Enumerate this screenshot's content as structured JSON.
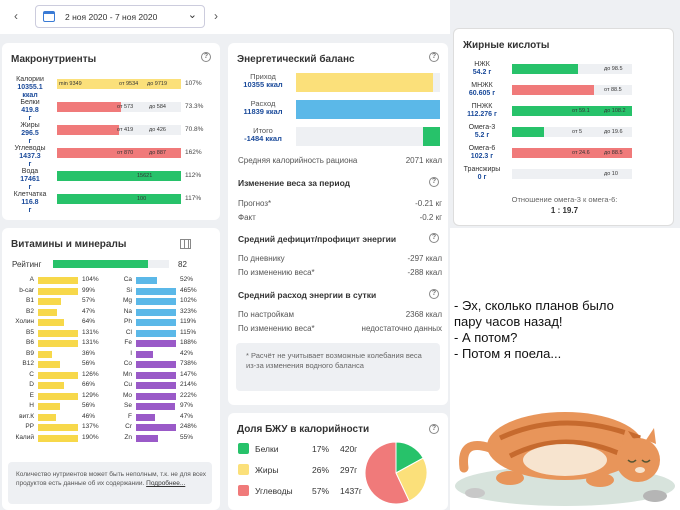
{
  "nav": {
    "prev": "‹",
    "next": "›",
    "date_range": "2 ноя 2020 - 7 ноя 2020",
    "dropdown": "⌄"
  },
  "macro": {
    "title": "Макронутриенты",
    "rows": [
      {
        "name": "Калории",
        "amount": "10355.1",
        "unit": "ккал",
        "color": "#fbe07a",
        "fill": 1.0,
        "ticks": [
          "min 9349",
          "от 9534",
          "до 9719"
        ],
        "pct": "107%"
      },
      {
        "name": "Белки",
        "amount": "419.8",
        "unit": "г",
        "color": "#f07a7a",
        "fill": 0.52,
        "ticks": [
          "от 573",
          "до 584"
        ],
        "pct": "73.3%"
      },
      {
        "name": "Жиры",
        "amount": "296.5",
        "unit": "г",
        "color": "#f07a7a",
        "fill": 0.5,
        "ticks": [
          "от 419",
          "до 426"
        ],
        "pct": "70.8%"
      },
      {
        "name": "Углеводы",
        "amount": "1437.3",
        "unit": "г",
        "color": "#f07a7a",
        "fill": 1.0,
        "ticks": [
          "от 870",
          "до 887"
        ],
        "pct": "162%"
      },
      {
        "name": "Вода",
        "amount": "17461",
        "unit": "г",
        "color": "#27c26a",
        "fill": 1.0,
        "ticks": [
          "15621"
        ],
        "pct": "112%"
      },
      {
        "name": "Клетчатка",
        "amount": "116.8",
        "unit": "г",
        "color": "#27c26a",
        "fill": 1.0,
        "ticks": [
          "100"
        ],
        "pct": "117%"
      }
    ]
  },
  "energy": {
    "title": "Энергетический баланс",
    "rows": [
      {
        "name": "Приход",
        "value": "10355 ккал",
        "color": "#fbe07a",
        "fill": 0.95
      },
      {
        "name": "Расход",
        "value": "11839 ккал",
        "color": "#5bb8e8",
        "fill": 1.0
      },
      {
        "name": "Итого",
        "value": "-1484 ккал",
        "color": "#27c26a",
        "fill": 0.12
      }
    ],
    "avg_label": "Средняя калорийность рациона",
    "avg_value": "2071 ккал",
    "weight_title": "Изменение веса за период",
    "weight_rows": [
      {
        "label": "Прогноз*",
        "value": "-0.21 кг"
      },
      {
        "label": "Факт",
        "value": "-0.2 кг"
      }
    ],
    "deficit_title": "Средний дефицит/профицит энергии",
    "deficit_rows": [
      {
        "label": "По дневнику",
        "value": "-297 ккал"
      },
      {
        "label": "По изменению веса*",
        "value": "-288 ккал"
      }
    ],
    "spend_title": "Средний расход энергии в сутки",
    "spend_rows": [
      {
        "label": "По настройкам",
        "value": "2368 ккал"
      },
      {
        "label": "По изменению веса*",
        "value": "недостаточно данных"
      }
    ],
    "note": "* Расчёт не учитывает возможные колебания веса из-за изменения водного баланса"
  },
  "vitamins": {
    "title": "Витамины и минералы",
    "rating_label": "Рейтинг",
    "rating_value": "82",
    "rating": 0.82,
    "left": [
      {
        "n": "A",
        "p": "104%",
        "f": 1
      },
      {
        "n": "b-car",
        "p": "99%",
        "f": 0.99
      },
      {
        "n": "B1",
        "p": "57%",
        "f": 0.57
      },
      {
        "n": "B2",
        "p": "47%",
        "f": 0.47
      },
      {
        "n": "Холин",
        "p": "64%",
        "f": 0.64
      },
      {
        "n": "B5",
        "p": "131%",
        "f": 1
      },
      {
        "n": "B6",
        "p": "131%",
        "f": 1
      },
      {
        "n": "B9",
        "p": "36%",
        "f": 0.36
      },
      {
        "n": "B12",
        "p": "56%",
        "f": 0.56
      },
      {
        "n": "C",
        "p": "126%",
        "f": 1
      },
      {
        "n": "D",
        "p": "66%",
        "f": 0.66
      },
      {
        "n": "E",
        "p": "129%",
        "f": 1
      },
      {
        "n": "H",
        "p": "56%",
        "f": 0.56
      },
      {
        "n": "вит.К",
        "p": "46%",
        "f": 0.46
      },
      {
        "n": "PP",
        "p": "137%",
        "f": 1
      }
    ],
    "right": [
      {
        "n": "Ca",
        "p": "52%",
        "f": 0.52,
        "c": "#5bb8e8"
      },
      {
        "n": "Si",
        "p": "465%",
        "f": 1,
        "c": "#5bb8e8"
      },
      {
        "n": "Mg",
        "p": "102%",
        "f": 1,
        "c": "#5bb8e8"
      },
      {
        "n": "Na",
        "p": "323%",
        "f": 1,
        "c": "#5bb8e8"
      },
      {
        "n": "Ph",
        "p": "119%",
        "f": 1,
        "c": "#5bb8e8"
      },
      {
        "n": "Cl",
        "p": "115%",
        "f": 1,
        "c": "#5bb8e8"
      },
      {
        "n": "Fe",
        "p": "188%",
        "f": 1,
        "c": "#9a5ac8"
      },
      {
        "n": "I",
        "p": "42%",
        "f": 0.42,
        "c": "#9a5ac8"
      },
      {
        "n": "Co",
        "p": "738%",
        "f": 1,
        "c": "#9a5ac8"
      },
      {
        "n": "Mn",
        "p": "147%",
        "f": 1,
        "c": "#9a5ac8"
      },
      {
        "n": "Cu",
        "p": "214%",
        "f": 1,
        "c": "#9a5ac8"
      },
      {
        "n": "Mo",
        "p": "222%",
        "f": 1,
        "c": "#9a5ac8"
      },
      {
        "n": "Se",
        "p": "97%",
        "f": 0.97,
        "c": "#9a5ac8"
      },
      {
        "n": "F",
        "p": "47%",
        "f": 0.47,
        "c": "#9a5ac8"
      },
      {
        "n": "Cr",
        "p": "248%",
        "f": 1,
        "c": "#9a5ac8"
      }
    ],
    "kalium": {
      "n": "Калий",
      "p": "190%",
      "f": 1
    },
    "zn": {
      "n": "Zn",
      "p": "55%",
      "f": 0.55,
      "c": "#9a5ac8"
    },
    "note": "Количество нутриентов может быть неполным, т.к. не для всех продуктов есть данные об их содержании.",
    "more": "Подробнее..."
  },
  "fats": {
    "title": "Жирные кислоты",
    "rows": [
      {
        "name": "НЖК",
        "amount": "54.2 г",
        "color": "#27c26a",
        "fill": 0.55,
        "ticks": [
          "до 98.5"
        ]
      },
      {
        "name": "МНЖК",
        "amount": "60.605 г",
        "color": "#f07a7a",
        "fill": 0.68,
        "ticks": [
          "от 88.5"
        ]
      },
      {
        "name": "ПНЖК",
        "amount": "112.276 г",
        "color": "#27c26a",
        "fill": 1.0,
        "ticks": [
          "от 59.1",
          "до 108.2"
        ]
      },
      {
        "name": "Омега-3",
        "amount": "5.2 г",
        "color": "#27c26a",
        "fill": 0.27,
        "ticks": [
          "от 5",
          "до 19.6"
        ]
      },
      {
        "name": "Омега-6",
        "amount": "102.3 г",
        "color": "#f07a7a",
        "fill": 1.0,
        "ticks": [
          "от 24.6",
          "до 88.5"
        ]
      },
      {
        "name": "Трансжиры",
        "amount": "0 г",
        "color": "#27c26a",
        "fill": 0.0,
        "ticks": [
          "до 10"
        ]
      }
    ],
    "ratio_label": "Отношение омега-3 к омега-6:",
    "ratio_value": "1 : 19.7"
  },
  "share": {
    "title": "Доля БЖУ в калорийности",
    "rows": [
      {
        "name": "Белки",
        "pct": "17%",
        "g": "420г",
        "color": "#27c26a",
        "v": 17
      },
      {
        "name": "Жиры",
        "pct": "26%",
        "g": "297г",
        "color": "#fbe07a",
        "v": 26
      },
      {
        "name": "Углеводы",
        "pct": "57%",
        "g": "1437г",
        "color": "#f07a7a",
        "v": 57
      }
    ]
  },
  "meme": {
    "lines": [
      "- Эх, сколько планов было",
      "пару часов назад!",
      "- А потом?",
      "- Потом я поела..."
    ]
  }
}
